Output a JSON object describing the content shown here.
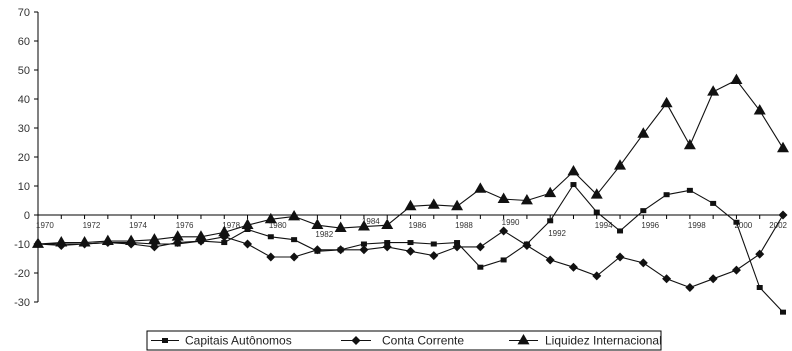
{
  "chart_data": {
    "type": "line",
    "title": "",
    "xlabel": "",
    "ylabel": "",
    "ylim": [
      -30,
      70
    ],
    "y_ticks": [
      -30,
      -20,
      -10,
      0,
      10,
      20,
      30,
      40,
      50,
      60,
      70
    ],
    "x_tick_labels": [
      "1970",
      "1972",
      "1974",
      "1976",
      "1978",
      "1980",
      "1982",
      "1984",
      "1986",
      "1988",
      "1990",
      "1992",
      "1994",
      "1996",
      "1998",
      "2000",
      "2002"
    ],
    "x": [
      1970,
      1971,
      1972,
      1973,
      1974,
      1975,
      1976,
      1977,
      1978,
      1979,
      1980,
      1981,
      1982,
      1983,
      1984,
      1985,
      1986,
      1987,
      1988,
      1989,
      1990,
      1991,
      1992,
      1993,
      1994,
      1995,
      1996,
      1997,
      1998,
      1999,
      2000,
      2001,
      2002
    ],
    "grid": false,
    "legend": "bottom",
    "series": [
      {
        "name": "Capitais Autônomos",
        "marker": "square",
        "values": [
          -10,
          -10,
          -10,
          -9.5,
          -9.5,
          -10,
          -10,
          -9,
          -9.5,
          -5,
          -7.5,
          -8.5,
          -12.5,
          -12,
          -10,
          -9.5,
          -9.5,
          -10,
          -9.5,
          -18,
          -15.5,
          -10,
          -2,
          10.5,
          1,
          -5.5,
          1.5,
          7,
          8.5,
          4,
          -2.5,
          -25,
          -33.5
        ]
      },
      {
        "name": "Conta Corrente",
        "marker": "diamond",
        "values": [
          -10,
          -10.5,
          -10,
          -9.5,
          -10,
          -11,
          -9.5,
          -9,
          -7.5,
          -10,
          -14.5,
          -14.5,
          -12,
          -12,
          -12,
          -11,
          -12.5,
          -14,
          -11,
          -11,
          -5.5,
          -10.5,
          -15.5,
          -18,
          -21,
          -14.5,
          -16.5,
          -22,
          -25,
          -22,
          -19,
          -13.5,
          0
        ]
      },
      {
        "name": "Liquidez Internacional",
        "marker": "triangle",
        "values": [
          -10,
          -9.5,
          -9.5,
          -9,
          -9,
          -8.5,
          -7.5,
          -7.5,
          -6,
          -3.5,
          -1.5,
          -0.5,
          -3.5,
          -4.5,
          -4,
          -3.5,
          3,
          3.5,
          3,
          9,
          5.5,
          5,
          7.5,
          15,
          7,
          17,
          28,
          38.5,
          24,
          42.5,
          46.5,
          36,
          23
        ]
      }
    ]
  },
  "legend": {
    "items": [
      "Capitais Autônomos",
      "Conta Corrente",
      "Liquidez Internacional"
    ]
  }
}
